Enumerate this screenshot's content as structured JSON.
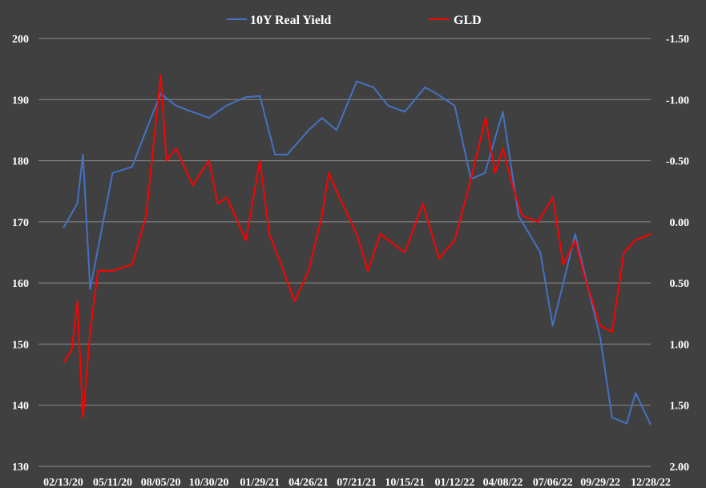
{
  "chart_data": {
    "type": "line",
    "title": "",
    "legend": {
      "placement": "top-center"
    },
    "grid": true,
    "background": "#404040",
    "x_tick_labels": [
      "02/13/20",
      "05/11/20",
      "08/05/20",
      "10/30/20",
      "01/29/21",
      "04/26/21",
      "07/21/21",
      "10/15/21",
      "01/12/22",
      "04/08/22",
      "07/06/22",
      "09/29/22",
      "12/28/22"
    ],
    "left_axis": {
      "ticks": [
        "130",
        "140",
        "150",
        "160",
        "170",
        "180",
        "190",
        "200"
      ],
      "range": [
        130,
        200
      ]
    },
    "right_axis": {
      "ticks": [
        "-1.50",
        "-1.00",
        "-0.50",
        "0.00",
        "0.50",
        "1.00",
        "1.50",
        "2.00"
      ],
      "range": [
        -1.5,
        2.0
      ],
      "inverted": true
    },
    "series": [
      {
        "name": "10Y Real Yield",
        "color": "#4472C4",
        "axis": "right",
        "x": [
          "02/13/20",
          "03/09/20",
          "03/19/20",
          "04/01/20",
          "05/11/20",
          "06/15/20",
          "07/10/20",
          "08/05/20",
          "09/01/20",
          "10/30/20",
          "11/30/20",
          "01/04/21",
          "01/29/21",
          "02/25/21",
          "03/19/21",
          "04/26/21",
          "05/20/21",
          "06/15/21",
          "07/21/21",
          "08/20/21",
          "09/15/21",
          "10/15/21",
          "11/20/21",
          "12/10/21",
          "01/12/22",
          "02/10/22",
          "03/07/22",
          "04/08/22",
          "05/06/22",
          "06/14/22",
          "07/06/22",
          "07/25/22",
          "08/15/22",
          "09/29/22",
          "10/20/22",
          "11/15/22",
          "12/01/22",
          "12/28/22"
        ],
        "values": [
          0.05,
          -0.15,
          -0.55,
          0.55,
          -0.4,
          -0.45,
          -0.75,
          -1.05,
          -0.95,
          -0.85,
          -0.95,
          -1.02,
          -1.03,
          -0.55,
          -0.55,
          -0.75,
          -0.85,
          -0.75,
          -1.15,
          -1.1,
          -0.95,
          -0.9,
          -1.1,
          -1.05,
          -0.95,
          -0.35,
          -0.4,
          -0.9,
          -0.05,
          0.25,
          0.85,
          0.5,
          0.1,
          0.95,
          1.6,
          1.65,
          1.4,
          1.66
        ]
      },
      {
        "name": "GLD",
        "color": "#FF0000",
        "axis": "left",
        "x": [
          "02/13/20",
          "02/28/20",
          "03/09/20",
          "03/19/20",
          "04/01/20",
          "04/15/20",
          "05/11/20",
          "06/15/20",
          "07/10/20",
          "08/05/20",
          "08/15/20",
          "09/01/20",
          "10/01/20",
          "10/30/20",
          "11/15/20",
          "12/01/20",
          "01/04/21",
          "01/29/21",
          "02/15/21",
          "03/08/21",
          "04/01/21",
          "04/26/21",
          "05/20/21",
          "06/01/21",
          "06/15/21",
          "07/21/21",
          "08/10/21",
          "09/01/21",
          "09/30/21",
          "10/15/21",
          "11/16/21",
          "12/15/21",
          "01/12/22",
          "02/10/22",
          "03/08/22",
          "03/25/22",
          "04/08/22",
          "04/25/22",
          "05/12/22",
          "06/10/22",
          "07/06/22",
          "07/25/22",
          "08/15/22",
          "09/01/22",
          "09/29/22",
          "10/20/22",
          "11/10/22",
          "12/01/22",
          "12/28/22"
        ],
        "values": [
          147,
          149,
          157,
          138,
          152,
          162,
          162,
          163,
          171,
          194,
          180,
          182,
          176,
          180,
          173,
          174,
          167,
          180,
          168,
          163,
          157,
          162,
          171,
          178,
          175,
          168,
          162,
          168,
          166,
          165,
          173,
          164,
          167,
          177,
          187,
          178,
          182,
          176,
          171,
          170,
          174,
          163,
          167,
          161,
          153,
          152,
          165,
          167,
          168
        ]
      }
    ]
  }
}
